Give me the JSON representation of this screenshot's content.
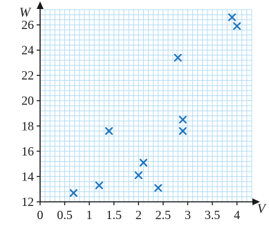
{
  "chart_data": {
    "type": "scatter",
    "xlabel": "V",
    "ylabel": "W",
    "xlim": [
      0,
      4.3
    ],
    "ylim": [
      12,
      27.2
    ],
    "grid": true,
    "xticks": [
      0,
      0.5,
      1,
      1.5,
      2,
      2.5,
      3,
      3.5,
      4
    ],
    "xtick_labels": [
      "0",
      "0.5",
      "1",
      "1.5",
      "2",
      "2.5",
      "3",
      "3.5",
      "4"
    ],
    "yticks": [
      12,
      14,
      16,
      18,
      20,
      22,
      24,
      26
    ],
    "ytick_labels": [
      "12",
      "14",
      "16",
      "18",
      "20",
      "22",
      "24",
      "26"
    ],
    "points": [
      {
        "x": 0.68,
        "y": 12.7
      },
      {
        "x": 1.2,
        "y": 13.3
      },
      {
        "x": 1.4,
        "y": 17.6
      },
      {
        "x": 2.0,
        "y": 14.1
      },
      {
        "x": 2.1,
        "y": 15.1
      },
      {
        "x": 2.4,
        "y": 13.1
      },
      {
        "x": 2.8,
        "y": 23.4
      },
      {
        "x": 2.9,
        "y": 18.5
      },
      {
        "x": 2.9,
        "y": 17.6
      },
      {
        "x": 3.9,
        "y": 26.6
      },
      {
        "x": 4.0,
        "y": 25.9
      }
    ],
    "colors": {
      "marker": "#1e73be",
      "grid": "#b3dcf4",
      "axis": "#1a1a1a"
    }
  }
}
